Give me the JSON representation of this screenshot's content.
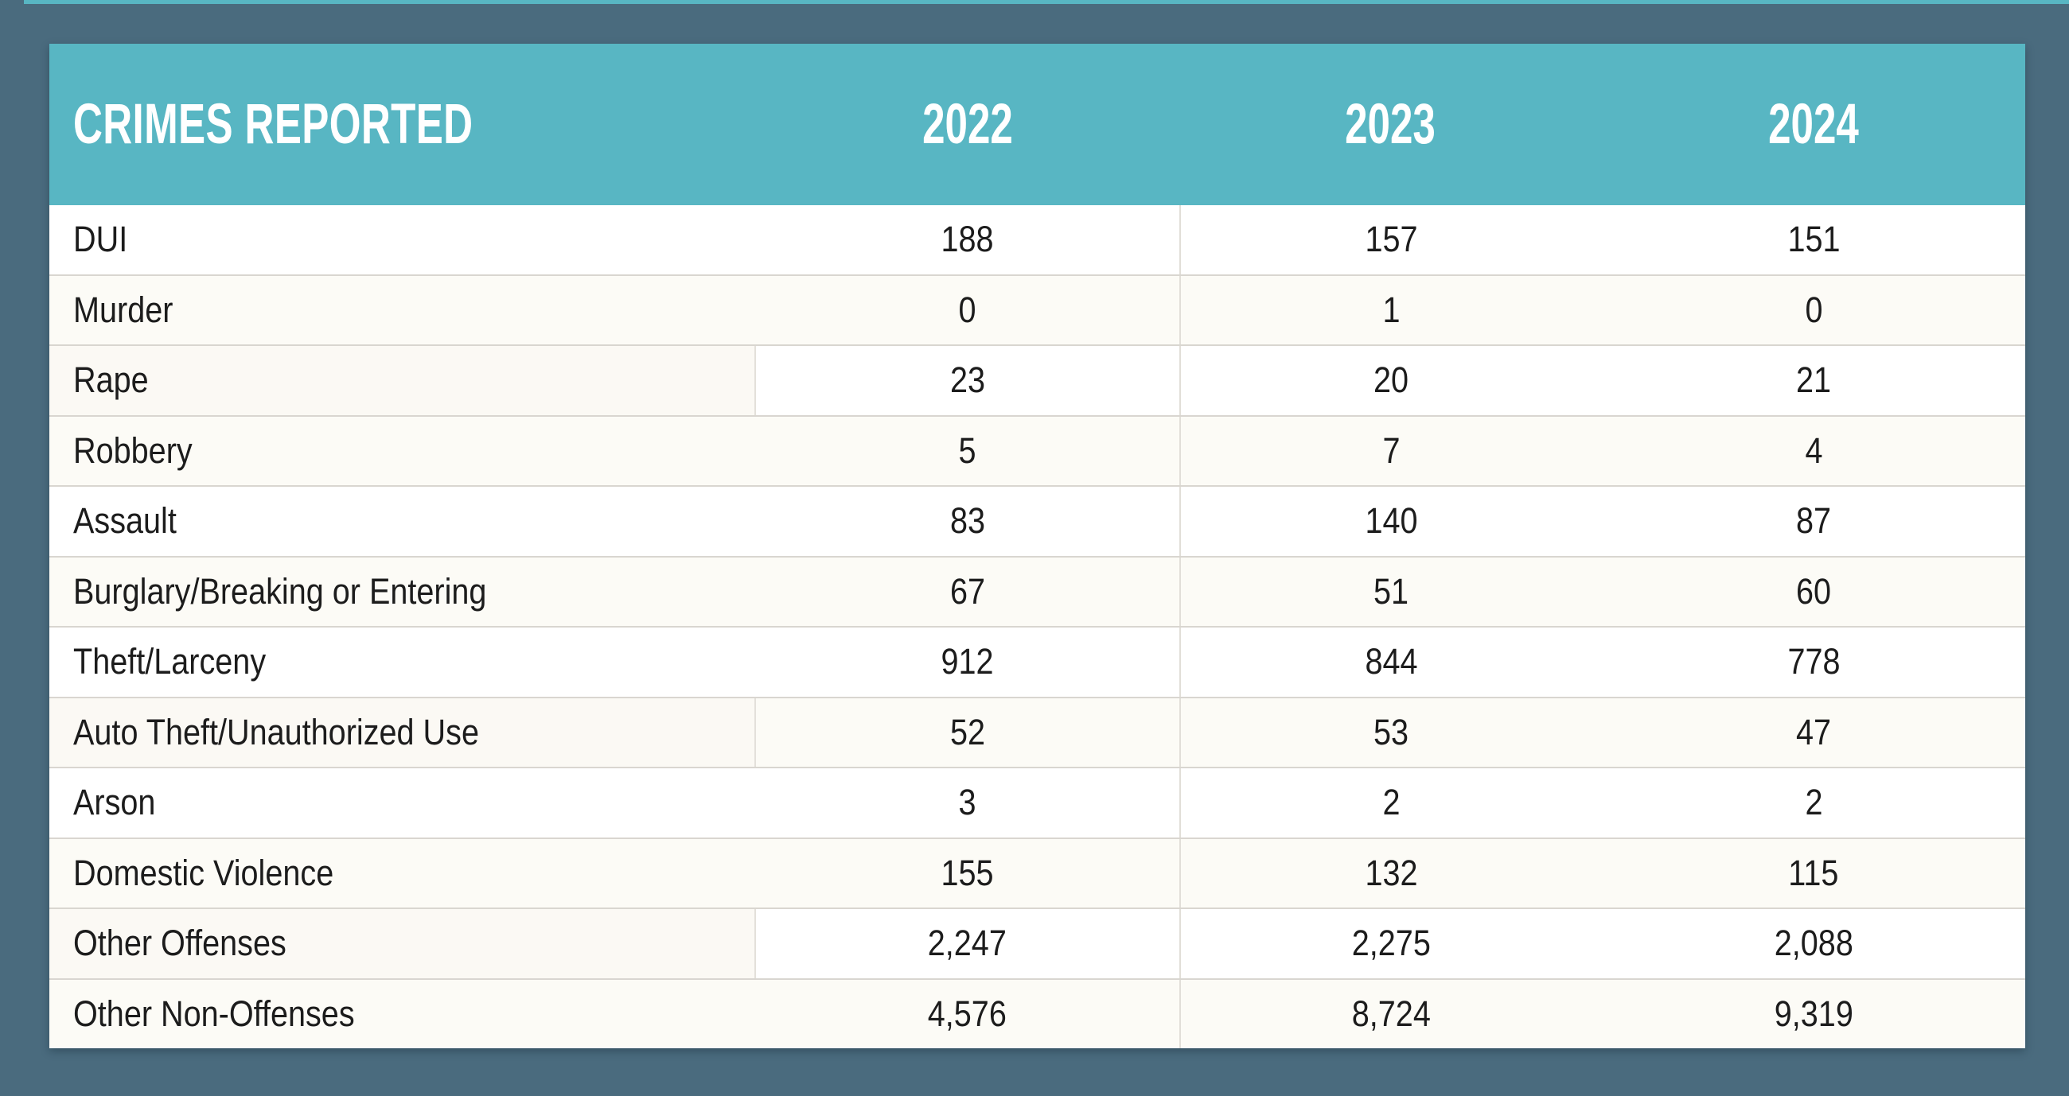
{
  "table": {
    "header": {
      "label": "CRIMES REPORTED",
      "years": [
        "2022",
        "2023",
        "2024"
      ]
    },
    "rows": [
      {
        "label": "DUI",
        "values": [
          "188",
          "157",
          "151"
        ]
      },
      {
        "label": "Murder",
        "values": [
          "0",
          "1",
          "0"
        ]
      },
      {
        "label": "Rape",
        "values": [
          "23",
          "20",
          "21"
        ],
        "divider": true
      },
      {
        "label": "Robbery",
        "values": [
          "5",
          "7",
          "4"
        ]
      },
      {
        "label": "Assault",
        "values": [
          "83",
          "140",
          "87"
        ]
      },
      {
        "label": "Burglary/Breaking or Entering",
        "values": [
          "67",
          "51",
          "60"
        ]
      },
      {
        "label": "Theft/Larceny",
        "values": [
          "912",
          "844",
          "778"
        ]
      },
      {
        "label": "Auto Theft/Unauthorized Use",
        "values": [
          "52",
          "53",
          "47"
        ],
        "divider": true
      },
      {
        "label": "Arson",
        "values": [
          "3",
          "2",
          "2"
        ]
      },
      {
        "label": "Domestic Violence",
        "values": [
          "155",
          "132",
          "115"
        ]
      },
      {
        "label": "Other Offenses",
        "values": [
          "2,247",
          "2,275",
          "2,088"
        ],
        "divider": true
      },
      {
        "label": "Other Non-Offenses",
        "values": [
          "4,576",
          "8,724",
          "9,319"
        ]
      }
    ]
  },
  "colors": {
    "page_background": "#4A6B7E",
    "header_background": "#58B6C3",
    "header_text": "#FFFFFF",
    "body_text": "#1C1C1C",
    "row_separator": "#D9D6D0",
    "column_separator": "#E1DED8"
  },
  "chart_data": {
    "type": "table",
    "title": "CRIMES REPORTED",
    "columns": [
      "CRIMES REPORTED",
      "2022",
      "2023",
      "2024"
    ],
    "categories": [
      "DUI",
      "Murder",
      "Rape",
      "Robbery",
      "Assault",
      "Burglary/Breaking or Entering",
      "Theft/Larceny",
      "Auto Theft/Unauthorized Use",
      "Arson",
      "Domestic Violence",
      "Other Offenses",
      "Other Non-Offenses"
    ],
    "series": [
      {
        "name": "2022",
        "values": [
          188,
          0,
          23,
          5,
          83,
          67,
          912,
          52,
          3,
          155,
          2247,
          4576
        ]
      },
      {
        "name": "2023",
        "values": [
          157,
          1,
          20,
          7,
          140,
          51,
          844,
          53,
          2,
          132,
          2275,
          8724
        ]
      },
      {
        "name": "2024",
        "values": [
          151,
          0,
          21,
          4,
          87,
          60,
          778,
          47,
          2,
          115,
          2088,
          9319
        ]
      }
    ]
  }
}
